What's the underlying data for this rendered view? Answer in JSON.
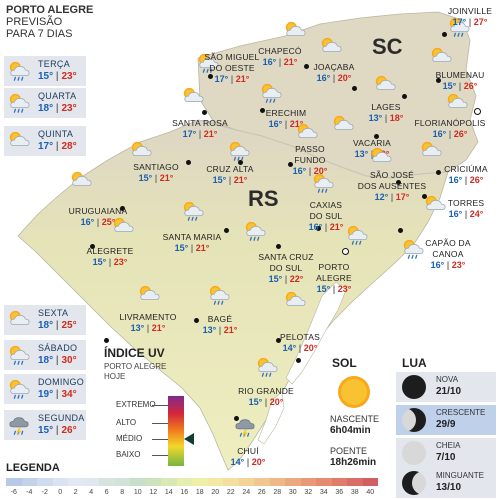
{
  "header": {
    "city": "PORTO ALEGRE",
    "line1": "PREVISÃO",
    "line2": "PARA 7 DIAS"
  },
  "days": [
    {
      "name": "TERÇA",
      "min": "15°",
      "max": "23°",
      "icon": "sun-cloud-rain-icon"
    },
    {
      "name": "QUARTA",
      "min": "18°",
      "max": "23°",
      "icon": "sun-cloud-rain-icon"
    },
    {
      "name": "QUINTA",
      "min": "17°",
      "max": "28°",
      "icon": "sun-cloud-icon"
    },
    {
      "name": "SEXTA",
      "min": "18°",
      "max": "25°",
      "icon": "sun-cloud-icon"
    },
    {
      "name": "SÁBADO",
      "min": "18°",
      "max": "30°",
      "icon": "sun-cloud-rain-icon"
    },
    {
      "name": "DOMINGO",
      "min": "19°",
      "max": "34°",
      "icon": "sun-cloud-rain-icon"
    },
    {
      "name": "SEGUNDA",
      "min": "15°",
      "max": "26°",
      "icon": "storm-icon"
    }
  ],
  "states": {
    "sc": "SC",
    "rs": "RS"
  },
  "cities": [
    {
      "name": "SÃO MIGUEL DO OESTE",
      "l1": "SÃO MIGUEL",
      "l2": "DO OESTE",
      "min": "17°",
      "max": "21°"
    },
    {
      "name": "CHAPECÓ",
      "l1": "CHAPECÓ",
      "l2": "",
      "min": "16°",
      "max": "21°"
    },
    {
      "name": "JOAÇABA",
      "l1": "JOAÇABA",
      "l2": "",
      "min": "16°",
      "max": "20°"
    },
    {
      "name": "JOINVILLE",
      "l1": "JOINVILLE",
      "l2": "",
      "min": "17°",
      "max": "27°"
    },
    {
      "name": "BLUMENAU",
      "l1": "BLUMENAU",
      "l2": "",
      "min": "15°",
      "max": "26°"
    },
    {
      "name": "LAGES",
      "l1": "LAGES",
      "l2": "",
      "min": "13°",
      "max": "18°"
    },
    {
      "name": "FLORIANÓPOLIS",
      "l1": "FLORIANÓPOLIS",
      "l2": "",
      "min": "16°",
      "max": "26°"
    },
    {
      "name": "SANTA ROSA",
      "l1": "SANTA ROSA",
      "l2": "",
      "min": "17°",
      "max": "21°"
    },
    {
      "name": "ERECHIM",
      "l1": "ERECHIM",
      "l2": "",
      "min": "16°",
      "max": "21°"
    },
    {
      "name": "VACARIA",
      "l1": "VACARIA",
      "l2": "",
      "min": "13°",
      "max": "19°"
    },
    {
      "name": "CRICIÚMA",
      "l1": "CRICIÚMA",
      "l2": "",
      "min": "16°",
      "max": "26°"
    },
    {
      "name": "SANTIAGO",
      "l1": "SANTIAGO",
      "l2": "",
      "min": "15°",
      "max": "21°"
    },
    {
      "name": "CRUZ ALTA",
      "l1": "CRUZ ALTA",
      "l2": "",
      "min": "15°",
      "max": "21°"
    },
    {
      "name": "PASSO FUNDO",
      "l1": "PASSO",
      "l2": "FUNDO",
      "min": "16°",
      "max": "20°"
    },
    {
      "name": "SÃO JOSÉ DOS AUSENTES",
      "l1": "SÃO JOSÉ",
      "l2": "DOS AUSENTES",
      "min": "12°",
      "max": "17°"
    },
    {
      "name": "TORRES",
      "l1": "TORRES",
      "l2": "",
      "min": "16°",
      "max": "24°"
    },
    {
      "name": "URUGUAIANA",
      "l1": "URUGUAIANA",
      "l2": "",
      "min": "16°",
      "max": "25°"
    },
    {
      "name": "CAXIAS DO SUL",
      "l1": "CAXIAS",
      "l2": "DO SUL",
      "min": "16°",
      "max": "21°"
    },
    {
      "name": "ALEGRETE",
      "l1": "ALEGRETE",
      "l2": "",
      "min": "15°",
      "max": "23°"
    },
    {
      "name": "SANTA MARIA",
      "l1": "SANTA MARIA",
      "l2": "",
      "min": "15°",
      "max": "21°"
    },
    {
      "name": "SANTA CRUZ DO SUL",
      "l1": "SANTA CRUZ",
      "l2": "DO SUL",
      "min": "15°",
      "max": "22°"
    },
    {
      "name": "PORTO ALEGRE",
      "l1": "PORTO",
      "l2": "ALEGRE",
      "min": "15°",
      "max": "23°"
    },
    {
      "name": "CAPÃO DA CANOA",
      "l1": "CAPÃO DA",
      "l2": "CANOA",
      "min": "16°",
      "max": "23°"
    },
    {
      "name": "LIVRAMENTO",
      "l1": "LIVRAMENTO",
      "l2": "",
      "min": "13°",
      "max": "21°"
    },
    {
      "name": "BAGÉ",
      "l1": "BAGÉ",
      "l2": "",
      "min": "13°",
      "max": "21°"
    },
    {
      "name": "PELOTAS",
      "l1": "PELOTAS",
      "l2": "",
      "min": "14°",
      "max": "20°"
    },
    {
      "name": "RIO GRANDE",
      "l1": "RIO GRANDE",
      "l2": "",
      "min": "15°",
      "max": "20°"
    },
    {
      "name": "CHUÍ",
      "l1": "CHUÍ",
      "l2": "",
      "min": "14°",
      "max": "20°"
    }
  ],
  "uv": {
    "title": "ÍNDICE UV",
    "sub1": "PORTO ALEGRE",
    "sub2": "HOJE",
    "levels": [
      "EXTREMO",
      "ALTO",
      "MÉDIO",
      "BAIXO"
    ],
    "current": "MÉDIO"
  },
  "legend": {
    "title": "LEGENDA",
    "ticks": [
      "-6",
      "-4",
      "-2",
      "0",
      "2",
      "4",
      "6",
      "8",
      "10",
      "12",
      "14",
      "16",
      "18",
      "20",
      "22",
      "24",
      "26",
      "28",
      "30",
      "32",
      "34",
      "36",
      "38",
      "40"
    ],
    "colors": [
      "#b7c9e6",
      "#c3d2ea",
      "#cfdcef",
      "#d9e3f2",
      "#e2e9f4",
      "#dfe7ef",
      "#d6e4e0",
      "#cfe3d6",
      "#c8e0c9",
      "#cde3bd",
      "#d9e8b4",
      "#e6eeaf",
      "#efefaa",
      "#f3e8a5",
      "#f4dea0",
      "#f3d398",
      "#f1c690",
      "#eeb887",
      "#eba97f",
      "#e89a78",
      "#e48b72",
      "#df7c6c",
      "#d96d67",
      "#d26062"
    ]
  },
  "sun": {
    "title": "SOL",
    "rise_label": "NASCENTE",
    "rise": "6h04min",
    "set_label": "POENTE",
    "set": "18h26min"
  },
  "moon": {
    "title": "LUA",
    "phases": [
      {
        "name": "NOVA",
        "date": "21/10"
      },
      {
        "name": "CRESCENTE",
        "date": "29/9"
      },
      {
        "name": "CHEIA",
        "date": "7/10"
      },
      {
        "name": "MINGUANTE",
        "date": "13/10"
      }
    ]
  },
  "colors": {
    "min": "#1a5fb0",
    "max": "#d12a1f",
    "land": "#ecebb7",
    "highlight": "#bfd0ea"
  }
}
